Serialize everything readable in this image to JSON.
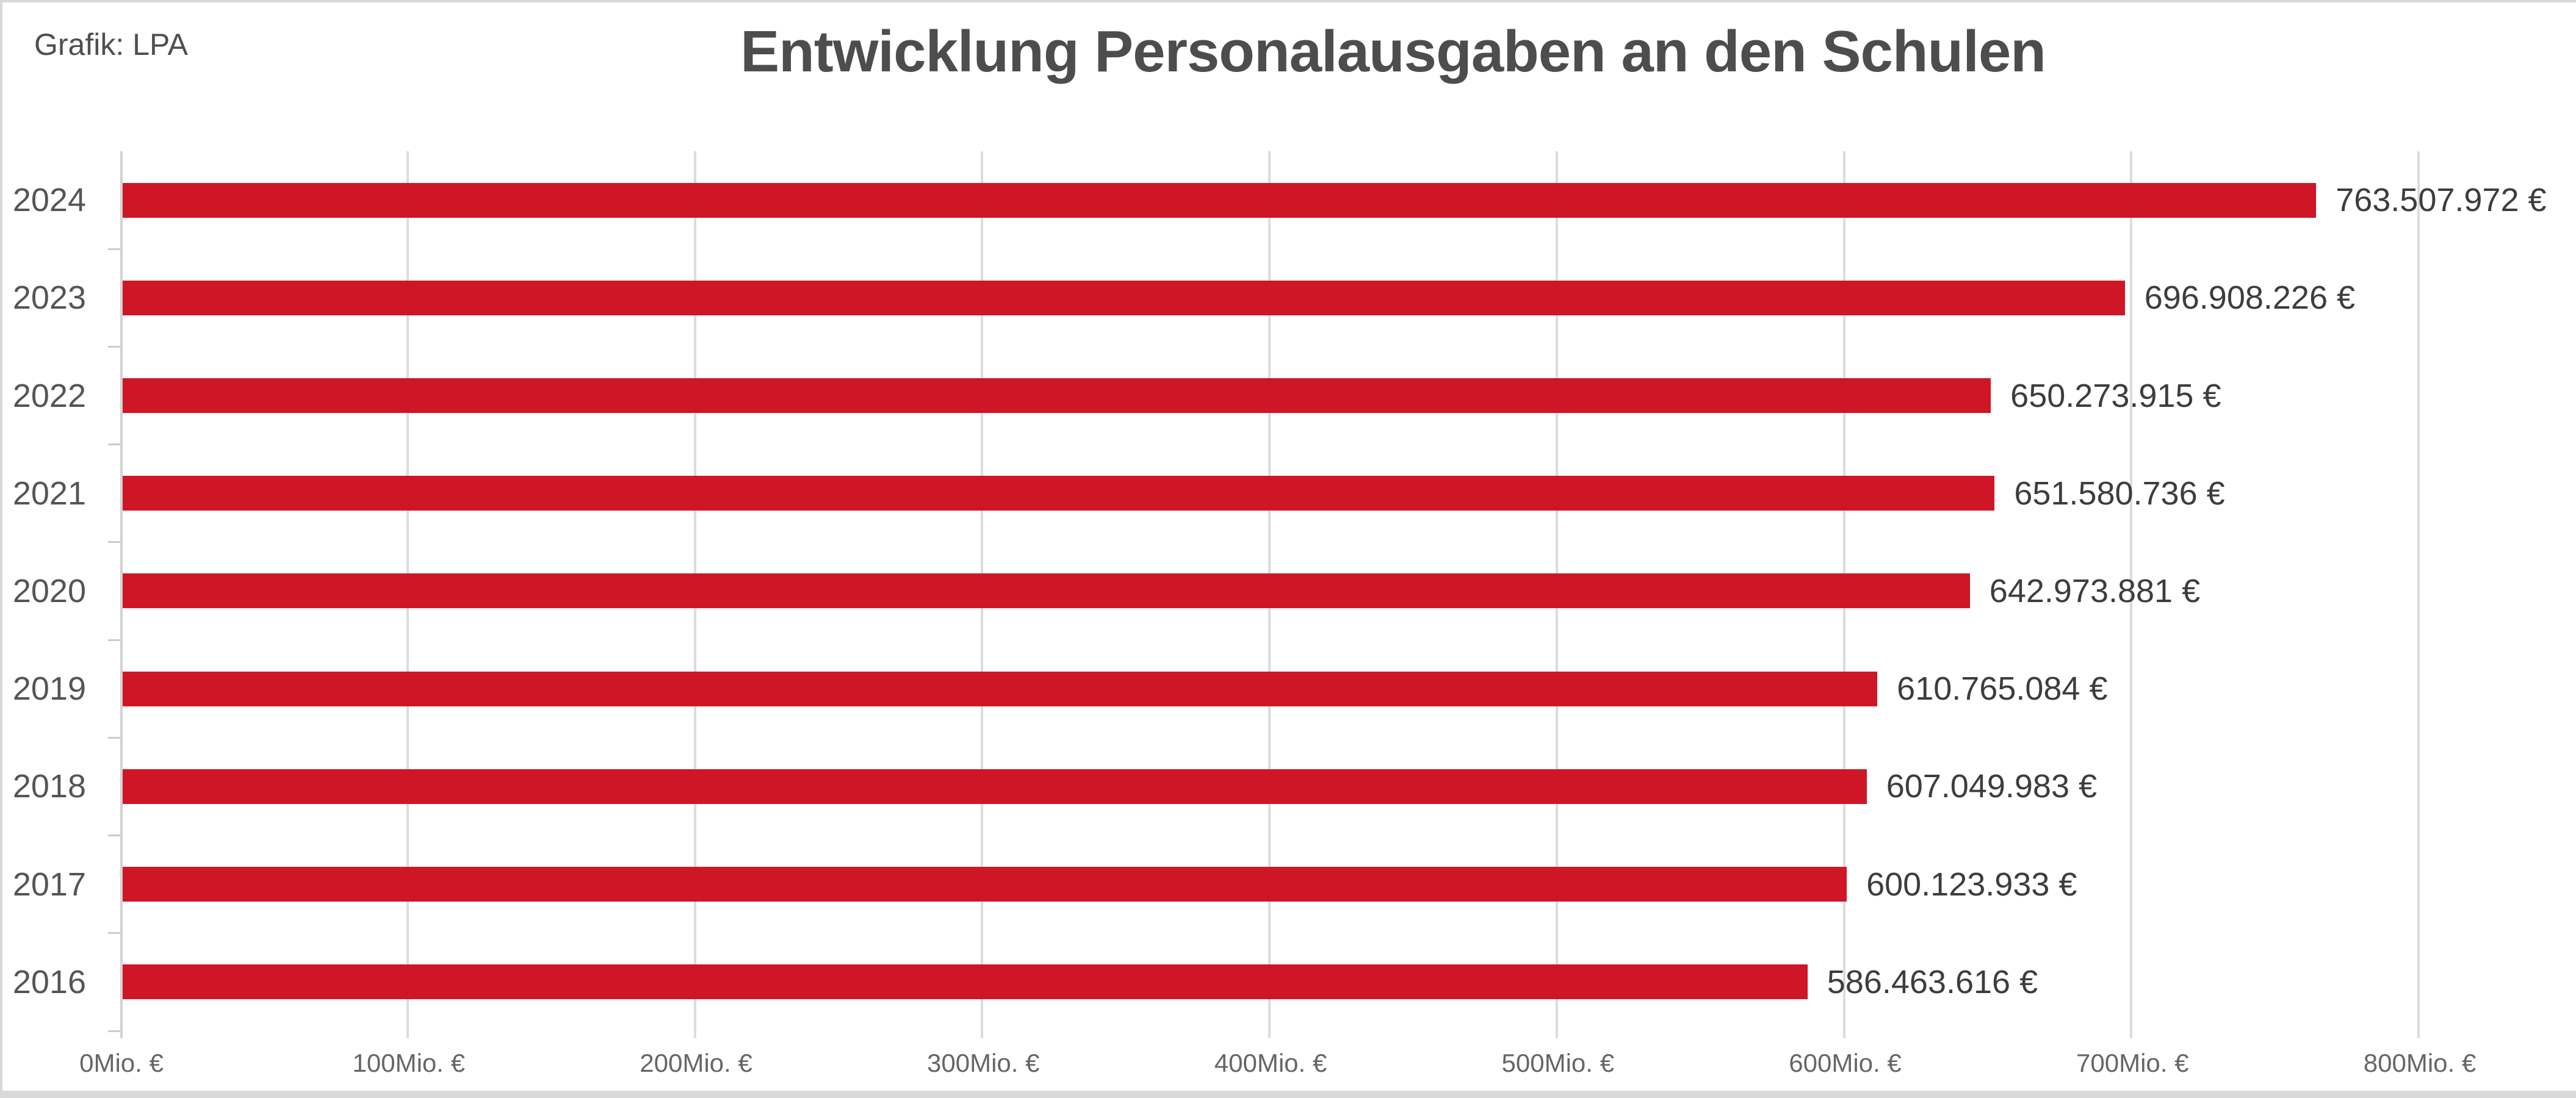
{
  "credit": "Grafik: LPA",
  "title": "Entwicklung Personalausgaben an den Schulen",
  "colors": {
    "bar": "#ce1626",
    "grid": "#dcdcdc",
    "axis": "#d2d2d2",
    "tick": "#cccccc",
    "frame": "#d9d9d9",
    "title": "#4d4d4d"
  },
  "chart_data": {
    "type": "bar",
    "orientation": "horizontal",
    "title": "Entwicklung Personalausgaben an den Schulen",
    "source_label": "Grafik: LPA",
    "categories": [
      "2024",
      "2023",
      "2022",
      "2021",
      "2020",
      "2019",
      "2018",
      "2017",
      "2016"
    ],
    "values": [
      763507972,
      696908226,
      650273915,
      651580736,
      642973881,
      610765084,
      607049983,
      600123933,
      586463616
    ],
    "value_labels": [
      "763.507.972 €",
      "696.908.226 €",
      "650.273.915 €",
      "651.580.736 €",
      "642.973.881 €",
      "610.765.084 €",
      "607.049.983 €",
      "600.123.933 €",
      "586.463.616 €"
    ],
    "xlabel": "",
    "ylabel": "",
    "xlim": [
      0,
      800000000
    ],
    "x_tick_values_mio": [
      0,
      100,
      200,
      300,
      400,
      500,
      600,
      700,
      800
    ],
    "x_tick_labels": [
      "0Mio. €",
      "100Mio. €",
      "200Mio. €",
      "300Mio. €",
      "400Mio. €",
      "500Mio. €",
      "600Mio. €",
      "700Mio. €",
      "800Mio. €"
    ],
    "grid": true,
    "legend": false
  }
}
